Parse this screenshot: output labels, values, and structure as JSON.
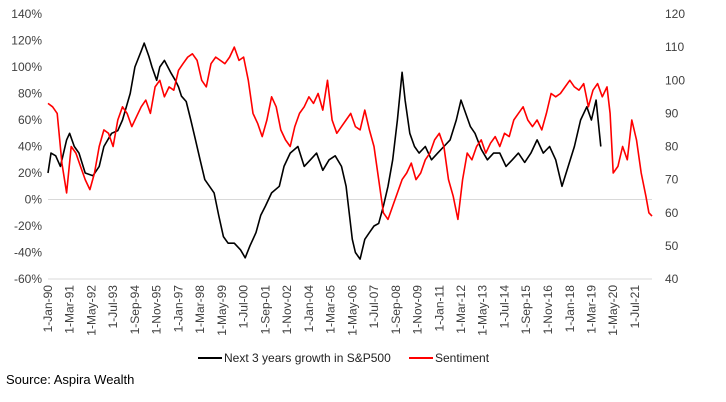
{
  "source_note": "Source: Aspira Wealth",
  "colors": {
    "growth": "#000000",
    "sentiment": "#ff0000",
    "axis": "#d9d9d9",
    "text": "#404040"
  },
  "chart_data": {
    "type": "line",
    "title": "",
    "xlabel": "",
    "ylabel": "",
    "x_start_label": "1-Jan-90",
    "x_range": [
      "1990-01-01",
      "2022-06-01"
    ],
    "y_left_ticks": [
      "140%",
      "120%",
      "100%",
      "80%",
      "60%",
      "40%",
      "20%",
      "0%",
      "-20%",
      "-40%",
      "-60%"
    ],
    "y_left_range": [
      -60,
      140
    ],
    "y_right_ticks": [
      "120",
      "110",
      "100",
      "90",
      "80",
      "70",
      "60",
      "50",
      "40"
    ],
    "y_right_range": [
      40,
      120
    ],
    "x_tick_labels": [
      "1-Jan-90",
      "1-Mar-91",
      "1-May-92",
      "1-Jul-93",
      "1-Sep-94",
      "1-Nov-95",
      "1-Jan-97",
      "1-Mar-98",
      "1-May-99",
      "1-Jul-00",
      "1-Sep-01",
      "1-Nov-02",
      "1-Jan-04",
      "1-Mar-05",
      "1-May-06",
      "1-Jul-07",
      "1-Sep-08",
      "1-Nov-09",
      "1-Jan-11",
      "1-Mar-12",
      "1-May-13",
      "1-Jul-14",
      "1-Sep-15",
      "1-Nov-16",
      "1-Jan-18",
      "1-Mar-19",
      "1-May-20",
      "1-Jul-21"
    ],
    "legend_position": "bottom",
    "series": [
      {
        "name": "Next 3 years growth in S&P500",
        "axis": "left",
        "color": "#000000",
        "points": [
          [
            "1990-01-01",
            20
          ],
          [
            "1990-03-01",
            35
          ],
          [
            "1990-06-01",
            33
          ],
          [
            "1990-09-01",
            25
          ],
          [
            "1991-01-01",
            45
          ],
          [
            "1991-03-01",
            50
          ],
          [
            "1991-06-01",
            40
          ],
          [
            "1991-09-01",
            35
          ],
          [
            "1992-01-01",
            20
          ],
          [
            "1992-06-01",
            18
          ],
          [
            "1992-10-01",
            25
          ],
          [
            "1993-01-01",
            40
          ],
          [
            "1993-06-01",
            50
          ],
          [
            "1993-10-01",
            52
          ],
          [
            "1994-01-01",
            60
          ],
          [
            "1994-06-01",
            80
          ],
          [
            "1994-09-01",
            100
          ],
          [
            "1995-01-01",
            112
          ],
          [
            "1995-03-01",
            118
          ],
          [
            "1995-06-01",
            108
          ],
          [
            "1995-08-01",
            100
          ],
          [
            "1995-11-01",
            90
          ],
          [
            "1996-01-01",
            100
          ],
          [
            "1996-04-01",
            105
          ],
          [
            "1996-08-01",
            96
          ],
          [
            "1996-11-01",
            90
          ],
          [
            "1997-01-01",
            85
          ],
          [
            "1997-03-01",
            78
          ],
          [
            "1997-06-01",
            74
          ],
          [
            "1997-09-01",
            60
          ],
          [
            "1997-12-01",
            45
          ],
          [
            "1998-03-01",
            30
          ],
          [
            "1998-06-01",
            15
          ],
          [
            "1998-09-01",
            10
          ],
          [
            "1998-12-01",
            5
          ],
          [
            "1999-03-01",
            -12
          ],
          [
            "1999-06-01",
            -28
          ],
          [
            "1999-09-01",
            -33
          ],
          [
            "2000-01-01",
            -33
          ],
          [
            "2000-05-01",
            -38
          ],
          [
            "2000-08-01",
            -44
          ],
          [
            "2000-11-01",
            -35
          ],
          [
            "2001-03-01",
            -25
          ],
          [
            "2001-06-01",
            -12
          ],
          [
            "2001-09-01",
            -5
          ],
          [
            "2002-01-01",
            5
          ],
          [
            "2002-06-01",
            10
          ],
          [
            "2002-09-01",
            25
          ],
          [
            "2003-01-01",
            35
          ],
          [
            "2003-06-01",
            40
          ],
          [
            "2003-10-01",
            25
          ],
          [
            "2004-02-01",
            30
          ],
          [
            "2004-06-01",
            35
          ],
          [
            "2004-10-01",
            22
          ],
          [
            "2005-02-01",
            30
          ],
          [
            "2005-06-01",
            33
          ],
          [
            "2005-10-01",
            25
          ],
          [
            "2006-01-01",
            10
          ],
          [
            "2006-03-01",
            -10
          ],
          [
            "2006-05-01",
            -30
          ],
          [
            "2006-07-01",
            -40
          ],
          [
            "2006-10-01",
            -45
          ],
          [
            "2007-01-01",
            -30
          ],
          [
            "2007-04-01",
            -25
          ],
          [
            "2007-07-01",
            -20
          ],
          [
            "2007-10-01",
            -18
          ],
          [
            "2008-01-01",
            -5
          ],
          [
            "2008-04-01",
            10
          ],
          [
            "2008-07-01",
            30
          ],
          [
            "2008-10-01",
            60
          ],
          [
            "2009-01-01",
            96
          ],
          [
            "2009-03-01",
            75
          ],
          [
            "2009-06-01",
            50
          ],
          [
            "2009-09-01",
            40
          ],
          [
            "2009-12-01",
            35
          ],
          [
            "2010-04-01",
            40
          ],
          [
            "2010-08-01",
            30
          ],
          [
            "2010-12-01",
            35
          ],
          [
            "2011-04-01",
            40
          ],
          [
            "2011-08-01",
            45
          ],
          [
            "2011-12-01",
            60
          ],
          [
            "2012-03-01",
            75
          ],
          [
            "2012-06-01",
            65
          ],
          [
            "2012-09-01",
            55
          ],
          [
            "2012-12-01",
            50
          ],
          [
            "2013-04-01",
            38
          ],
          [
            "2013-08-01",
            30
          ],
          [
            "2013-12-01",
            35
          ],
          [
            "2014-04-01",
            35
          ],
          [
            "2014-08-01",
            25
          ],
          [
            "2014-12-01",
            30
          ],
          [
            "2015-04-01",
            35
          ],
          [
            "2015-08-01",
            28
          ],
          [
            "2015-12-01",
            35
          ],
          [
            "2016-04-01",
            45
          ],
          [
            "2016-08-01",
            35
          ],
          [
            "2016-12-01",
            40
          ],
          [
            "2017-04-01",
            30
          ],
          [
            "2017-08-01",
            10
          ],
          [
            "2017-12-01",
            25
          ],
          [
            "2018-04-01",
            40
          ],
          [
            "2018-08-01",
            60
          ],
          [
            "2018-12-01",
            70
          ],
          [
            "2019-03-01",
            60
          ],
          [
            "2019-06-01",
            75
          ],
          [
            "2019-09-01",
            40
          ]
        ]
      },
      {
        "name": "Sentiment",
        "axis": "right",
        "color": "#ff0000",
        "points": [
          [
            "1990-01-01",
            93
          ],
          [
            "1990-04-01",
            92
          ],
          [
            "1990-07-01",
            90
          ],
          [
            "1990-10-01",
            75
          ],
          [
            "1991-01-01",
            66
          ],
          [
            "1991-04-01",
            80
          ],
          [
            "1991-07-01",
            78
          ],
          [
            "1991-10-01",
            74
          ],
          [
            "1992-01-01",
            70
          ],
          [
            "1992-04-01",
            67
          ],
          [
            "1992-07-01",
            72
          ],
          [
            "1992-10-01",
            80
          ],
          [
            "1993-01-01",
            85
          ],
          [
            "1993-04-01",
            84
          ],
          [
            "1993-07-01",
            80
          ],
          [
            "1993-10-01",
            88
          ],
          [
            "1994-01-01",
            92
          ],
          [
            "1994-04-01",
            90
          ],
          [
            "1994-07-01",
            86
          ],
          [
            "1994-10-01",
            89
          ],
          [
            "1995-01-01",
            92
          ],
          [
            "1995-04-01",
            94
          ],
          [
            "1995-07-01",
            90
          ],
          [
            "1995-10-01",
            98
          ],
          [
            "1996-01-01",
            100
          ],
          [
            "1996-04-01",
            95
          ],
          [
            "1996-07-01",
            98
          ],
          [
            "1996-10-01",
            97
          ],
          [
            "1997-01-01",
            103
          ],
          [
            "1997-04-01",
            105
          ],
          [
            "1997-07-01",
            107
          ],
          [
            "1997-10-01",
            108
          ],
          [
            "1998-01-01",
            106
          ],
          [
            "1998-04-01",
            100
          ],
          [
            "1998-07-01",
            98
          ],
          [
            "1998-10-01",
            105
          ],
          [
            "1999-01-01",
            107
          ],
          [
            "1999-04-01",
            106
          ],
          [
            "1999-07-01",
            105
          ],
          [
            "1999-10-01",
            107
          ],
          [
            "2000-01-01",
            110
          ],
          [
            "2000-04-01",
            106
          ],
          [
            "2000-07-01",
            107
          ],
          [
            "2000-10-01",
            100
          ],
          [
            "2001-01-01",
            90
          ],
          [
            "2001-04-01",
            87
          ],
          [
            "2001-07-01",
            83
          ],
          [
            "2001-10-01",
            88
          ],
          [
            "2002-01-01",
            95
          ],
          [
            "2002-04-01",
            92
          ],
          [
            "2002-07-01",
            85
          ],
          [
            "2002-10-01",
            82
          ],
          [
            "2003-01-01",
            80
          ],
          [
            "2003-04-01",
            86
          ],
          [
            "2003-07-01",
            90
          ],
          [
            "2003-10-01",
            92
          ],
          [
            "2004-01-01",
            95
          ],
          [
            "2004-04-01",
            93
          ],
          [
            "2004-07-01",
            96
          ],
          [
            "2004-10-01",
            91
          ],
          [
            "2005-01-01",
            100
          ],
          [
            "2005-04-01",
            88
          ],
          [
            "2005-07-01",
            84
          ],
          [
            "2005-10-01",
            86
          ],
          [
            "2006-01-01",
            88
          ],
          [
            "2006-04-01",
            90
          ],
          [
            "2006-07-01",
            86
          ],
          [
            "2006-10-01",
            85
          ],
          [
            "2007-01-01",
            91
          ],
          [
            "2007-04-01",
            85
          ],
          [
            "2007-07-01",
            80
          ],
          [
            "2007-10-01",
            70
          ],
          [
            "2008-01-01",
            60
          ],
          [
            "2008-04-01",
            58
          ],
          [
            "2008-07-01",
            62
          ],
          [
            "2008-10-01",
            66
          ],
          [
            "2009-01-01",
            70
          ],
          [
            "2009-04-01",
            72
          ],
          [
            "2009-07-01",
            75
          ],
          [
            "2009-10-01",
            70
          ],
          [
            "2010-01-01",
            72
          ],
          [
            "2010-04-01",
            76
          ],
          [
            "2010-07-01",
            78
          ],
          [
            "2010-10-01",
            82
          ],
          [
            "2011-01-01",
            84
          ],
          [
            "2011-04-01",
            80
          ],
          [
            "2011-07-01",
            70
          ],
          [
            "2011-10-01",
            65
          ],
          [
            "2012-01-01",
            58
          ],
          [
            "2012-04-01",
            70
          ],
          [
            "2012-07-01",
            78
          ],
          [
            "2012-10-01",
            76
          ],
          [
            "2013-01-01",
            80
          ],
          [
            "2013-04-01",
            82
          ],
          [
            "2013-07-01",
            78
          ],
          [
            "2013-10-01",
            81
          ],
          [
            "2014-01-01",
            83
          ],
          [
            "2014-04-01",
            80
          ],
          [
            "2014-07-01",
            84
          ],
          [
            "2014-10-01",
            83
          ],
          [
            "2015-01-01",
            88
          ],
          [
            "2015-04-01",
            90
          ],
          [
            "2015-07-01",
            92
          ],
          [
            "2015-10-01",
            88
          ],
          [
            "2016-01-01",
            86
          ],
          [
            "2016-04-01",
            88
          ],
          [
            "2016-07-01",
            85
          ],
          [
            "2016-10-01",
            90
          ],
          [
            "2017-01-01",
            96
          ],
          [
            "2017-04-01",
            95
          ],
          [
            "2017-07-01",
            96
          ],
          [
            "2017-10-01",
            98
          ],
          [
            "2018-01-01",
            100
          ],
          [
            "2018-04-01",
            98
          ],
          [
            "2018-07-01",
            97
          ],
          [
            "2018-10-01",
            99
          ],
          [
            "2019-01-01",
            92
          ],
          [
            "2019-04-01",
            97
          ],
          [
            "2019-07-01",
            99
          ],
          [
            "2019-10-01",
            95
          ],
          [
            "2020-01-01",
            98
          ],
          [
            "2020-03-01",
            90
          ],
          [
            "2020-05-01",
            72
          ],
          [
            "2020-08-01",
            74
          ],
          [
            "2020-11-01",
            80
          ],
          [
            "2021-02-01",
            76
          ],
          [
            "2021-05-01",
            88
          ],
          [
            "2021-08-01",
            82
          ],
          [
            "2021-11-01",
            72
          ],
          [
            "2022-02-01",
            65
          ],
          [
            "2022-04-01",
            60
          ],
          [
            "2022-06-01",
            59
          ]
        ]
      }
    ]
  }
}
